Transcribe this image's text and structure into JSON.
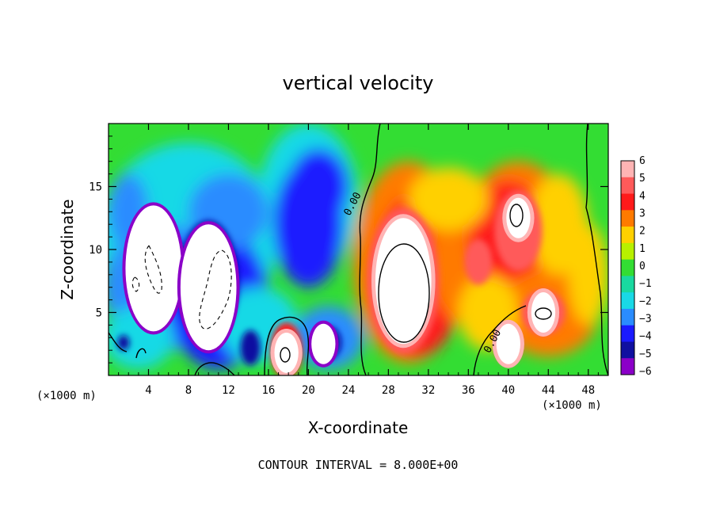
{
  "chart_data": {
    "type": "heatmap",
    "title": "vertical velocity",
    "xlabel": "X-coordinate",
    "ylabel": "Z-coordinate",
    "x_unit_label": "(×1000 m)",
    "z_unit_label": "(×1000 m)",
    "xlim": [
      0,
      50
    ],
    "zlim": [
      0,
      20
    ],
    "x_ticks": [
      4,
      8,
      12,
      16,
      20,
      24,
      28,
      32,
      36,
      40,
      44,
      48
    ],
    "x_tick_labels": [
      "4",
      "8",
      "12",
      "16",
      "20",
      "24",
      "28",
      "32",
      "36",
      "40",
      "44",
      "48"
    ],
    "z_ticks": [
      5,
      10,
      15
    ],
    "z_tick_labels": [
      "5",
      "10",
      "15"
    ],
    "colorbar": {
      "values": [
        6,
        5,
        4,
        3,
        2,
        1,
        0,
        -1,
        -2,
        -3,
        -4,
        -5,
        -6
      ],
      "labels": [
        "6",
        "5",
        "4",
        "3",
        "2",
        "1",
        "0",
        "−1",
        "−2",
        "−3",
        "−4",
        "−5",
        "−6"
      ],
      "colors": [
        "#ffb4b4",
        "#ff5a5a",
        "#ff1a1a",
        "#ff7a00",
        "#ffd000",
        "#b8f000",
        "#33dd33",
        "#19d9a0",
        "#19d9e6",
        "#2a8cff",
        "#1a1aff",
        "#1010a0",
        "#8b00c8"
      ]
    },
    "contour_labels": [
      {
        "x": 24.7,
        "z": 13.5,
        "text": "0.00"
      },
      {
        "x": 38.7,
        "z": 2.6,
        "text": "0.00"
      }
    ],
    "annotation": "CONTOUR INTERVAL = 8.000E+00",
    "features": [
      {
        "x": 29.5,
        "z": 7.5,
        "value": 8,
        "kind": "updraft core"
      },
      {
        "x": 41.0,
        "z": 12.5,
        "value": 7,
        "kind": "updraft"
      },
      {
        "x": 43.5,
        "z": 5.0,
        "value": 7,
        "kind": "updraft"
      },
      {
        "x": 40.0,
        "z": 2.5,
        "value": 7,
        "kind": "updraft"
      },
      {
        "x": 17.8,
        "z": 1.8,
        "value": 6,
        "kind": "updraft"
      },
      {
        "x": 4.5,
        "z": 8.5,
        "value": -8,
        "kind": "downdraft core"
      },
      {
        "x": 10.0,
        "z": 7.0,
        "value": -8,
        "kind": "downdraft core"
      },
      {
        "x": 19.5,
        "z": 12.0,
        "value": -5,
        "kind": "downdraft"
      },
      {
        "x": 21.5,
        "z": 2.5,
        "value": -6,
        "kind": "downdraft"
      }
    ]
  }
}
